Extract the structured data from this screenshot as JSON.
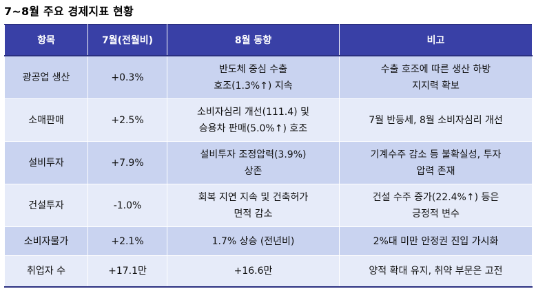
{
  "title": "7~8월 주요 경제지표 현황",
  "colors": {
    "header_bg": "#3940a6",
    "header_text": "#ffffff",
    "row_dark": "#c9d3f0",
    "row_light": "#e6ebf9"
  },
  "table": {
    "headers": [
      "항목",
      "7월(전월비)",
      "8월 동향",
      "비고"
    ],
    "rows": [
      {
        "item": "광공업 생산",
        "july": "+0.3%",
        "aug_lines": [
          "반도체 중심 수출",
          "호조(1.3%↑) 지속"
        ],
        "note_lines": [
          "수출 호조에 따른 생산 하방",
          "지지력 확보"
        ]
      },
      {
        "item": "소매판매",
        "july": "+2.5%",
        "aug_lines": [
          "소비자심리 개선(111.4) 및",
          "승용차 판매(5.0%↑) 호조"
        ],
        "note_lines": [
          "7월 반등세, 8월 소비자심리 개선"
        ]
      },
      {
        "item": "설비투자",
        "july": "+7.9%",
        "aug_lines": [
          "설비투자 조정압력(3.9%)",
          "상존"
        ],
        "note_lines": [
          "기계수주 감소 등 불확실성, 투자",
          "압력 존재"
        ]
      },
      {
        "item": "건설투자",
        "july": "-1.0%",
        "aug_lines": [
          "회복 지연 지속 및 건축허가",
          "면적 감소"
        ],
        "note_lines": [
          "건설 수주 증가(22.4%↑) 등은",
          "긍정적 변수"
        ]
      },
      {
        "item": "소비자물가",
        "july": "+2.1%",
        "aug_lines": [
          "1.7% 상승 (전년비)"
        ],
        "note_lines": [
          "2%대 미만 안정권 진입 가시화"
        ]
      },
      {
        "item": "취업자 수",
        "july": "+17.1만",
        "aug_lines": [
          "+16.6만"
        ],
        "note_lines": [
          "양적 확대 유지, 취약 부문은 고전"
        ]
      }
    ]
  }
}
